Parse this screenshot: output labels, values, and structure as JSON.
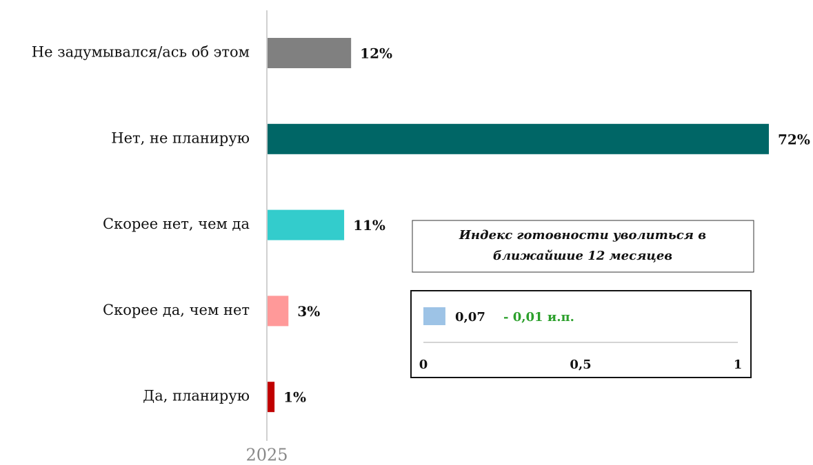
{
  "chart_data": [
    {
      "type": "bar",
      "orientation": "horizontal",
      "categories": [
        "Не задумывался/ась об этом",
        "Нет, не планирую",
        "Скорее нет, чем да",
        "Скорее да, чем нет",
        "Да, планирую"
      ],
      "values": [
        12,
        72,
        11,
        3,
        1
      ],
      "value_labels": [
        "12%",
        "72%",
        "11%",
        "3%",
        "1%"
      ],
      "colors": [
        "#808080",
        "#006666",
        "#33cccc",
        "#ff9999",
        "#c00000"
      ],
      "xlabel": "2025"
    },
    {
      "type": "bar",
      "orientation": "horizontal",
      "title": "Индекс готовности уволиться в ближайшие 12 месяцев",
      "values": [
        0.07
      ],
      "value_labels": [
        "0,07"
      ],
      "color": "#9dc3e6",
      "annotation": "- 0,01 и.п.",
      "annotation_color": "#2ca02c",
      "xlim": [
        0,
        1
      ],
      "xticks": [
        0,
        {
          "value": 0.5,
          "label": "0,5"
        },
        1
      ]
    }
  ]
}
